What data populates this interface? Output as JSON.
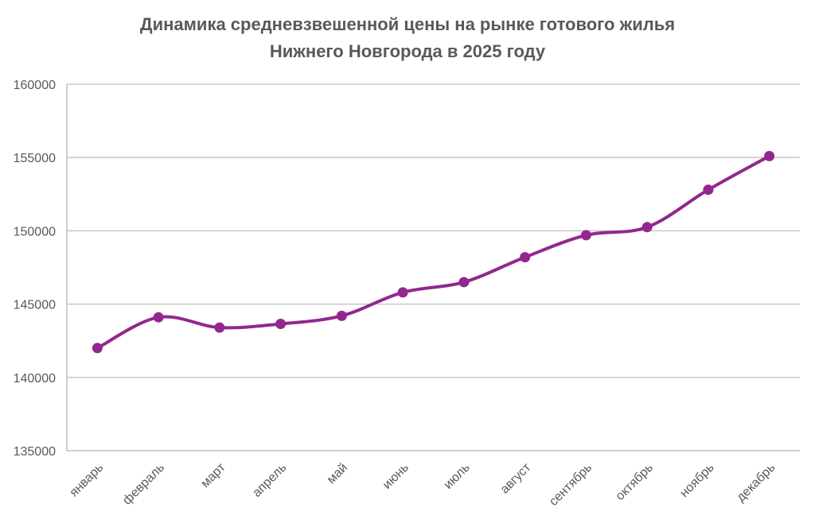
{
  "chart_data": {
    "type": "line",
    "title_line1": "Динамика средневзвешенной цены на рынке готового жилья",
    "title_line2": "Нижнего Новгорода в 2025 году",
    "categories": [
      "январь",
      "февраль",
      "март",
      "апрель",
      "май",
      "июнь",
      "июль",
      "август",
      "сентябрь",
      "октябрь",
      "ноябрь",
      "декабрь"
    ],
    "values": [
      142000,
      144100,
      143400,
      143650,
      144200,
      145800,
      146500,
      148200,
      149700,
      150250,
      152800,
      155100
    ],
    "ylim": [
      135000,
      160000
    ],
    "yticks": [
      "135000",
      "140000",
      "145000",
      "150000",
      "155000",
      "160000"
    ],
    "xlabel": "",
    "ylabel": "",
    "grid": true,
    "legend": "none",
    "series_color": "#92278f",
    "grid_color": "#bfbfbf"
  }
}
